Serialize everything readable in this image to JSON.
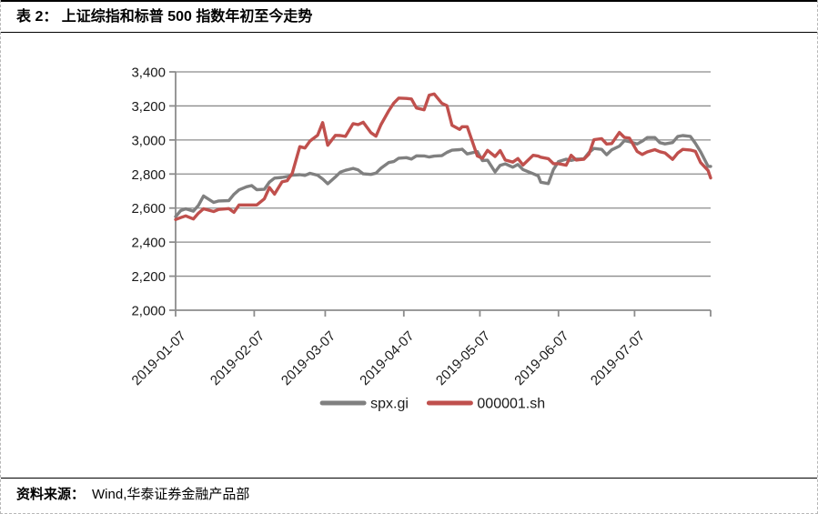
{
  "figure": {
    "title": "表 2：  上证综指和标普 500 指数年初至今走势",
    "source_label": "资料来源：",
    "source_text": "Wind,华泰证券金融产品部"
  },
  "chart_data": {
    "type": "line",
    "title": "上证综指和标普500指数年初至今走势",
    "xlabel": "",
    "ylabel": "",
    "grid": "horizontal",
    "legend_position": "bottom",
    "colors": {
      "spx": "#808080",
      "sse": "#C0504D",
      "gridline": "#8C8C8C",
      "axis": "#8C8C8C",
      "text": "#1a1a1a"
    },
    "y_axis": {
      "min": 2000,
      "max": 3400,
      "step": 200,
      "tick_labels": [
        "2,000",
        "2,200",
        "2,400",
        "2,600",
        "2,800",
        "3,000",
        "3,200",
        "3,400"
      ]
    },
    "x_axis": {
      "start": "2019-01-07",
      "end": "2019-08-06",
      "tick_labels": [
        "2019-01-07",
        "2019-02-07",
        "2019-03-07",
        "2019-04-07",
        "2019-05-07",
        "2019-06-07",
        "2019-07-07"
      ]
    },
    "dates": [
      "2019-01-07",
      "2019-01-09",
      "2019-01-11",
      "2019-01-14",
      "2019-01-16",
      "2019-01-18",
      "2019-01-22",
      "2019-01-24",
      "2019-01-28",
      "2019-01-30",
      "2019-02-01",
      "2019-02-04",
      "2019-02-06",
      "2019-02-08",
      "2019-02-11",
      "2019-02-13",
      "2019-02-15",
      "2019-02-18",
      "2019-02-20",
      "2019-02-22",
      "2019-02-25",
      "2019-02-27",
      "2019-03-01",
      "2019-03-04",
      "2019-03-06",
      "2019-03-08",
      "2019-03-11",
      "2019-03-13",
      "2019-03-15",
      "2019-03-18",
      "2019-03-20",
      "2019-03-22",
      "2019-03-25",
      "2019-03-27",
      "2019-03-29",
      "2019-04-01",
      "2019-04-03",
      "2019-04-05",
      "2019-04-08",
      "2019-04-10",
      "2019-04-12",
      "2019-04-15",
      "2019-04-17",
      "2019-04-19",
      "2019-04-22",
      "2019-04-24",
      "2019-04-26",
      "2019-04-29",
      "2019-04-30",
      "2019-05-02",
      "2019-05-06",
      "2019-05-08",
      "2019-05-10",
      "2019-05-13",
      "2019-05-15",
      "2019-05-17",
      "2019-05-20",
      "2019-05-22",
      "2019-05-24",
      "2019-05-28",
      "2019-05-30",
      "2019-05-31",
      "2019-06-03",
      "2019-06-05",
      "2019-06-07",
      "2019-06-10",
      "2019-06-12",
      "2019-06-14",
      "2019-06-17",
      "2019-06-19",
      "2019-06-21",
      "2019-06-24",
      "2019-06-26",
      "2019-06-28",
      "2019-07-01",
      "2019-07-03",
      "2019-07-05",
      "2019-07-08",
      "2019-07-10",
      "2019-07-12",
      "2019-07-15",
      "2019-07-17",
      "2019-07-19",
      "2019-07-22",
      "2019-07-24",
      "2019-07-26",
      "2019-07-29",
      "2019-07-31",
      "2019-08-02",
      "2019-08-05",
      "2019-08-06"
    ],
    "series": [
      {
        "name": "spx.gi",
        "color": "#808080",
        "values": [
          2550,
          2585,
          2596,
          2582,
          2616,
          2671,
          2633,
          2642,
          2644,
          2681,
          2707,
          2725,
          2732,
          2708,
          2710,
          2753,
          2776,
          2780,
          2785,
          2793,
          2796,
          2792,
          2804,
          2793,
          2771,
          2743,
          2783,
          2811,
          2822,
          2833,
          2824,
          2801,
          2798,
          2805,
          2834,
          2867,
          2873,
          2893,
          2896,
          2888,
          2907,
          2906,
          2900,
          2905,
          2908,
          2927,
          2940,
          2943,
          2946,
          2918,
          2932,
          2879,
          2881,
          2812,
          2851,
          2860,
          2840,
          2856,
          2826,
          2802,
          2789,
          2752,
          2744,
          2826,
          2873,
          2887,
          2880,
          2887,
          2889,
          2926,
          2950,
          2945,
          2913,
          2942,
          2964,
          2996,
          2990,
          2976,
          2993,
          3014,
          3014,
          2984,
          2977,
          2985,
          3020,
          3026,
          3021,
          2980,
          2932,
          2845,
          2845
        ]
      },
      {
        "name": "000001.sh",
        "color": "#C0504D",
        "values": [
          2533,
          2544,
          2554,
          2536,
          2570,
          2596,
          2580,
          2592,
          2597,
          2575,
          2618,
          2618,
          2618,
          2618,
          2654,
          2721,
          2682,
          2754,
          2761,
          2804,
          2961,
          2953,
          2994,
          3028,
          3102,
          2969,
          3027,
          3026,
          3021,
          3096,
          3090,
          3104,
          3043,
          3022,
          3090,
          3170,
          3216,
          3246,
          3244,
          3241,
          3188,
          3177,
          3263,
          3270,
          3215,
          3201,
          3086,
          3062,
          3078,
          3078,
          2906,
          2893,
          2939,
          2903,
          2938,
          2882,
          2870,
          2891,
          2853,
          2910,
          2905,
          2899,
          2890,
          2861,
          2861,
          2852,
          2910,
          2882,
          2887,
          2917,
          3002,
          3008,
          2976,
          2979,
          3044,
          3015,
          3011,
          2933,
          2915,
          2930,
          2943,
          2931,
          2924,
          2886,
          2923,
          2945,
          2941,
          2933,
          2868,
          2821,
          2777
        ]
      }
    ]
  }
}
